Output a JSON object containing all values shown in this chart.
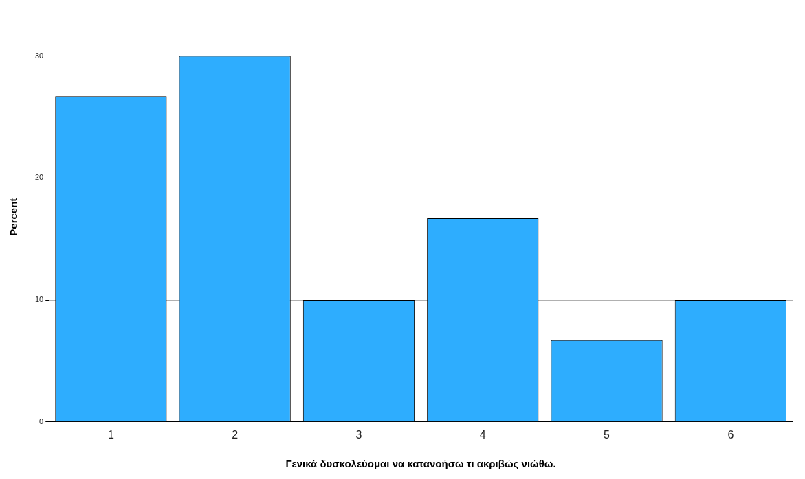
{
  "chart_data": {
    "type": "bar",
    "xlabel": "Γενικά δυσκολεύομαι να κατανοήσω τι ακριβώς νιώθω.",
    "ylabel": "Percent",
    "categories": [
      "1",
      "2",
      "3",
      "4",
      "5",
      "6"
    ],
    "values": [
      26.7,
      30,
      10,
      16.7,
      6.7,
      10
    ],
    "color": "#2eadfe",
    "ylim": [
      0,
      33.6
    ],
    "yticks": [
      0,
      10,
      20,
      30
    ],
    "grid": "y",
    "legend": false
  }
}
